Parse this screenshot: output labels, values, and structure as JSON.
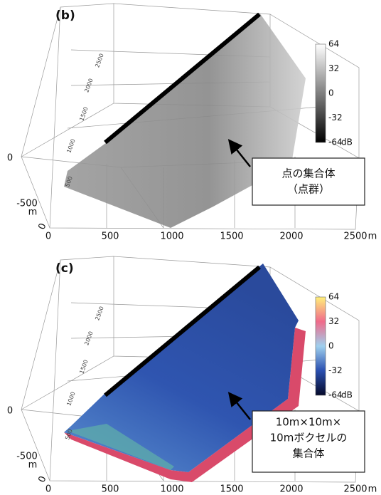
{
  "panels": [
    {
      "label": "(b)",
      "x_ticks": [
        0,
        500,
        1000,
        1500,
        2000,
        2500
      ],
      "x_unit": "m",
      "y_ticks": [
        0,
        -500
      ],
      "y_unit": "m",
      "z_ticks": [
        0,
        500,
        1000,
        1500,
        2000,
        2500
      ],
      "colorbar": {
        "ticks": [
          64,
          32,
          0,
          -32,
          -64
        ],
        "unit": "dB"
      },
      "callout": [
        "点の集合体",
        "（点群）"
      ]
    },
    {
      "label": "(c)",
      "x_ticks": [
        0,
        500,
        1000,
        1500,
        2000,
        2500
      ],
      "x_unit": "m",
      "y_ticks": [
        0,
        -500
      ],
      "y_unit": "m",
      "z_ticks": [
        0,
        500,
        1000,
        1500,
        2000,
        2500
      ],
      "colorbar": {
        "ticks": [
          64,
          32,
          0,
          -32,
          -64
        ],
        "unit": "dB"
      },
      "callout": [
        "10m×10m×",
        "10mボクセルの",
        "集合体"
      ]
    }
  ]
}
